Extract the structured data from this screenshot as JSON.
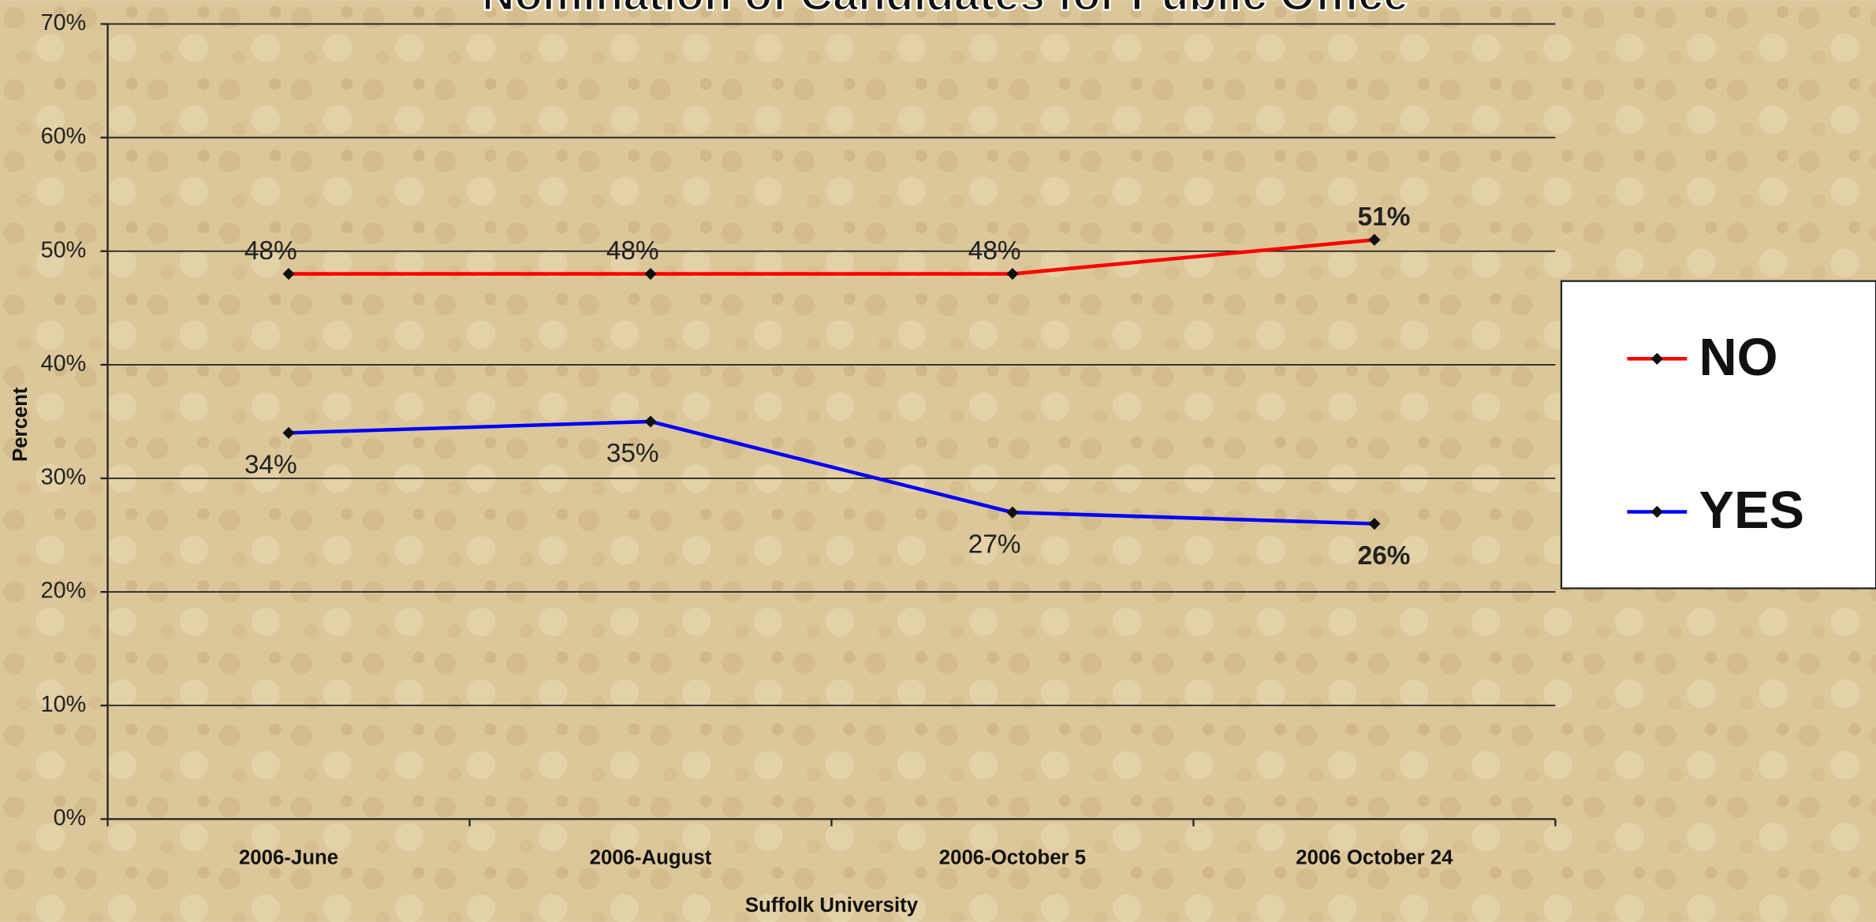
{
  "chart_data": {
    "type": "line",
    "title": "Nomination of Candidates for Public Office",
    "x_label": "Suffolk University",
    "y_label": "Percent",
    "categories": [
      "2006-June",
      "2006-August",
      "2006-October 5",
      "2006 October 24"
    ],
    "series": [
      {
        "name": "NO",
        "color": "#ff0000",
        "values": [
          48,
          48,
          48,
          51
        ],
        "value_labels": [
          "48%",
          "48%",
          "48%",
          "51%"
        ]
      },
      {
        "name": "YES",
        "color": "#0000ff",
        "values": [
          34,
          35,
          27,
          26
        ],
        "value_labels": [
          "34%",
          "35%",
          "27%",
          "26%"
        ]
      }
    ],
    "ylim": [
      0,
      70
    ],
    "yticks": [
      {
        "value": 0,
        "label": "0%"
      },
      {
        "value": 10,
        "label": "10%"
      },
      {
        "value": 20,
        "label": "20%"
      },
      {
        "value": 30,
        "label": "30%"
      },
      {
        "value": 40,
        "label": "40%"
      },
      {
        "value": 50,
        "label": "50%"
      },
      {
        "value": 60,
        "label": "60%"
      },
      {
        "value": 70,
        "label": "70%"
      }
    ],
    "grid": true,
    "legend": "right"
  }
}
